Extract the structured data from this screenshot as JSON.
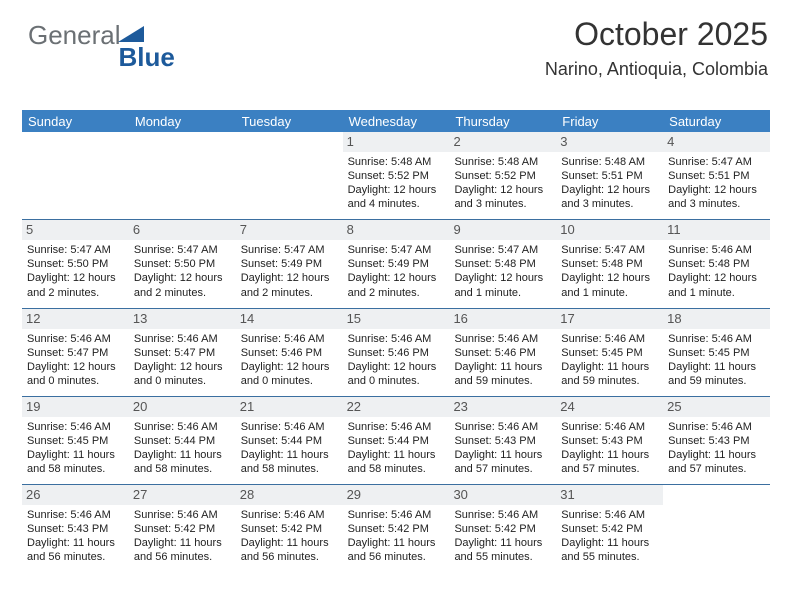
{
  "logo": {
    "textGray": "General",
    "textBlue": "Blue"
  },
  "header": {
    "title": "October 2025",
    "location": "Narino, Antioquia, Colombia"
  },
  "columns": [
    "Sunday",
    "Monday",
    "Tuesday",
    "Wednesday",
    "Thursday",
    "Friday",
    "Saturday"
  ],
  "colors": {
    "header_bg": "#3b80c2",
    "header_text": "#ffffff",
    "daynum_bg": "#eef0f2",
    "row_divider": "#3b6fa0",
    "logo_gray": "#6b7074",
    "logo_blue": "#1d5a9b",
    "body_text": "#222222",
    "background": "#ffffff"
  },
  "rows": [
    [
      {
        "blank": true
      },
      {
        "blank": true
      },
      {
        "blank": true
      },
      {
        "day": "1",
        "sunrise": "Sunrise: 5:48 AM",
        "sunset": "Sunset: 5:52 PM",
        "daylight1": "Daylight: 12 hours",
        "daylight2": "and 4 minutes."
      },
      {
        "day": "2",
        "sunrise": "Sunrise: 5:48 AM",
        "sunset": "Sunset: 5:52 PM",
        "daylight1": "Daylight: 12 hours",
        "daylight2": "and 3 minutes."
      },
      {
        "day": "3",
        "sunrise": "Sunrise: 5:48 AM",
        "sunset": "Sunset: 5:51 PM",
        "daylight1": "Daylight: 12 hours",
        "daylight2": "and 3 minutes."
      },
      {
        "day": "4",
        "sunrise": "Sunrise: 5:47 AM",
        "sunset": "Sunset: 5:51 PM",
        "daylight1": "Daylight: 12 hours",
        "daylight2": "and 3 minutes."
      }
    ],
    [
      {
        "day": "5",
        "sunrise": "Sunrise: 5:47 AM",
        "sunset": "Sunset: 5:50 PM",
        "daylight1": "Daylight: 12 hours",
        "daylight2": "and 2 minutes."
      },
      {
        "day": "6",
        "sunrise": "Sunrise: 5:47 AM",
        "sunset": "Sunset: 5:50 PM",
        "daylight1": "Daylight: 12 hours",
        "daylight2": "and 2 minutes."
      },
      {
        "day": "7",
        "sunrise": "Sunrise: 5:47 AM",
        "sunset": "Sunset: 5:49 PM",
        "daylight1": "Daylight: 12 hours",
        "daylight2": "and 2 minutes."
      },
      {
        "day": "8",
        "sunrise": "Sunrise: 5:47 AM",
        "sunset": "Sunset: 5:49 PM",
        "daylight1": "Daylight: 12 hours",
        "daylight2": "and 2 minutes."
      },
      {
        "day": "9",
        "sunrise": "Sunrise: 5:47 AM",
        "sunset": "Sunset: 5:48 PM",
        "daylight1": "Daylight: 12 hours",
        "daylight2": "and 1 minute."
      },
      {
        "day": "10",
        "sunrise": "Sunrise: 5:47 AM",
        "sunset": "Sunset: 5:48 PM",
        "daylight1": "Daylight: 12 hours",
        "daylight2": "and 1 minute."
      },
      {
        "day": "11",
        "sunrise": "Sunrise: 5:46 AM",
        "sunset": "Sunset: 5:48 PM",
        "daylight1": "Daylight: 12 hours",
        "daylight2": "and 1 minute."
      }
    ],
    [
      {
        "day": "12",
        "sunrise": "Sunrise: 5:46 AM",
        "sunset": "Sunset: 5:47 PM",
        "daylight1": "Daylight: 12 hours",
        "daylight2": "and 0 minutes."
      },
      {
        "day": "13",
        "sunrise": "Sunrise: 5:46 AM",
        "sunset": "Sunset: 5:47 PM",
        "daylight1": "Daylight: 12 hours",
        "daylight2": "and 0 minutes."
      },
      {
        "day": "14",
        "sunrise": "Sunrise: 5:46 AM",
        "sunset": "Sunset: 5:46 PM",
        "daylight1": "Daylight: 12 hours",
        "daylight2": "and 0 minutes."
      },
      {
        "day": "15",
        "sunrise": "Sunrise: 5:46 AM",
        "sunset": "Sunset: 5:46 PM",
        "daylight1": "Daylight: 12 hours",
        "daylight2": "and 0 minutes."
      },
      {
        "day": "16",
        "sunrise": "Sunrise: 5:46 AM",
        "sunset": "Sunset: 5:46 PM",
        "daylight1": "Daylight: 11 hours",
        "daylight2": "and 59 minutes."
      },
      {
        "day": "17",
        "sunrise": "Sunrise: 5:46 AM",
        "sunset": "Sunset: 5:45 PM",
        "daylight1": "Daylight: 11 hours",
        "daylight2": "and 59 minutes."
      },
      {
        "day": "18",
        "sunrise": "Sunrise: 5:46 AM",
        "sunset": "Sunset: 5:45 PM",
        "daylight1": "Daylight: 11 hours",
        "daylight2": "and 59 minutes."
      }
    ],
    [
      {
        "day": "19",
        "sunrise": "Sunrise: 5:46 AM",
        "sunset": "Sunset: 5:45 PM",
        "daylight1": "Daylight: 11 hours",
        "daylight2": "and 58 minutes."
      },
      {
        "day": "20",
        "sunrise": "Sunrise: 5:46 AM",
        "sunset": "Sunset: 5:44 PM",
        "daylight1": "Daylight: 11 hours",
        "daylight2": "and 58 minutes."
      },
      {
        "day": "21",
        "sunrise": "Sunrise: 5:46 AM",
        "sunset": "Sunset: 5:44 PM",
        "daylight1": "Daylight: 11 hours",
        "daylight2": "and 58 minutes."
      },
      {
        "day": "22",
        "sunrise": "Sunrise: 5:46 AM",
        "sunset": "Sunset: 5:44 PM",
        "daylight1": "Daylight: 11 hours",
        "daylight2": "and 58 minutes."
      },
      {
        "day": "23",
        "sunrise": "Sunrise: 5:46 AM",
        "sunset": "Sunset: 5:43 PM",
        "daylight1": "Daylight: 11 hours",
        "daylight2": "and 57 minutes."
      },
      {
        "day": "24",
        "sunrise": "Sunrise: 5:46 AM",
        "sunset": "Sunset: 5:43 PM",
        "daylight1": "Daylight: 11 hours",
        "daylight2": "and 57 minutes."
      },
      {
        "day": "25",
        "sunrise": "Sunrise: 5:46 AM",
        "sunset": "Sunset: 5:43 PM",
        "daylight1": "Daylight: 11 hours",
        "daylight2": "and 57 minutes."
      }
    ],
    [
      {
        "day": "26",
        "sunrise": "Sunrise: 5:46 AM",
        "sunset": "Sunset: 5:43 PM",
        "daylight1": "Daylight: 11 hours",
        "daylight2": "and 56 minutes."
      },
      {
        "day": "27",
        "sunrise": "Sunrise: 5:46 AM",
        "sunset": "Sunset: 5:42 PM",
        "daylight1": "Daylight: 11 hours",
        "daylight2": "and 56 minutes."
      },
      {
        "day": "28",
        "sunrise": "Sunrise: 5:46 AM",
        "sunset": "Sunset: 5:42 PM",
        "daylight1": "Daylight: 11 hours",
        "daylight2": "and 56 minutes."
      },
      {
        "day": "29",
        "sunrise": "Sunrise: 5:46 AM",
        "sunset": "Sunset: 5:42 PM",
        "daylight1": "Daylight: 11 hours",
        "daylight2": "and 56 minutes."
      },
      {
        "day": "30",
        "sunrise": "Sunrise: 5:46 AM",
        "sunset": "Sunset: 5:42 PM",
        "daylight1": "Daylight: 11 hours",
        "daylight2": "and 55 minutes."
      },
      {
        "day": "31",
        "sunrise": "Sunrise: 5:46 AM",
        "sunset": "Sunset: 5:42 PM",
        "daylight1": "Daylight: 11 hours",
        "daylight2": "and 55 minutes."
      },
      {
        "blank": true
      }
    ]
  ]
}
